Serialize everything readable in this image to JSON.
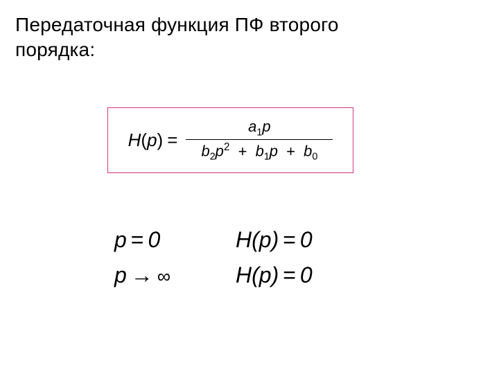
{
  "title": {
    "line1": "Передаточная функция ПФ второго",
    "line2": "порядка:"
  },
  "formula_box": {
    "border_color": "#d63384",
    "lhs_fn": "H",
    "lhs_var": "p",
    "numerator": {
      "coef": "a",
      "sub": "1",
      "var": "p"
    },
    "denominator": {
      "t1_coef": "b",
      "t1_sub": "2",
      "t1_var": "p",
      "t1_sup": "2",
      "t2_coef": "b",
      "t2_sub": "1",
      "t2_var": "p",
      "t3_coef": "b",
      "t3_sub": "0"
    }
  },
  "limits": {
    "r1c1_var": "p",
    "r1c1_eq": "=",
    "r1c1_val": "0",
    "r1c2_fn": "H",
    "r1c2_arg": "p",
    "r1c2_eq": "=",
    "r1c2_val": "0",
    "r2c1_var": "p",
    "r2c1_arrow": "→",
    "r2c1_val": "∞",
    "r2c2_fn": "H",
    "r2c2_arg": "p",
    "r2c2_eq": "=",
    "r2c2_val": "0"
  },
  "colors": {
    "text": "#000000",
    "background": "#ffffff"
  },
  "typography": {
    "title_fontsize": 28,
    "formula_fontsize": 26,
    "limits_fontsize": 32
  }
}
